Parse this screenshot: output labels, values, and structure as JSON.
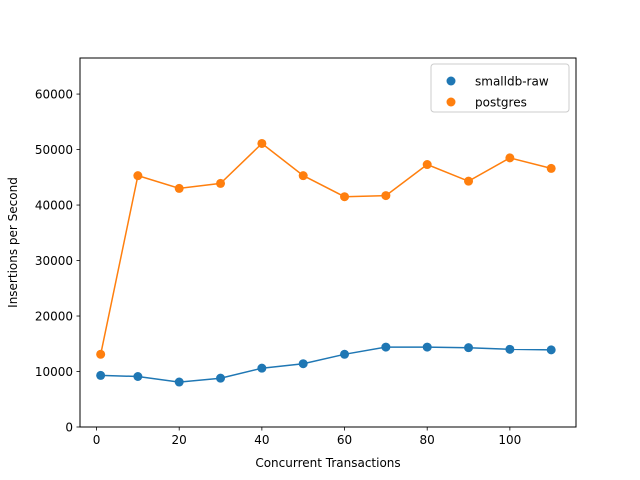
{
  "chart_data": {
    "type": "line",
    "title": "",
    "xlabel": "Concurrent Transactions",
    "ylabel": "Insertions per Second",
    "xlim": [
      -4,
      116
    ],
    "ylim": [
      0,
      66500
    ],
    "xticks": [
      0,
      20,
      40,
      60,
      80,
      100
    ],
    "yticks": [
      0,
      10000,
      20000,
      30000,
      40000,
      50000,
      60000
    ],
    "grid": false,
    "legend_position": "top-right",
    "x": [
      1,
      10,
      20,
      30,
      40,
      50,
      60,
      70,
      80,
      90,
      100,
      110
    ],
    "series": [
      {
        "name": "smalldb-raw",
        "color": "#1f77b4",
        "values": [
          9300,
          9100,
          8100,
          8800,
          10600,
          11400,
          13100,
          14400,
          14400,
          14300,
          14000,
          13900
        ]
      },
      {
        "name": "postgres",
        "color": "#ff7f0e",
        "values": [
          13100,
          45300,
          43000,
          43900,
          51100,
          45300,
          41500,
          41700,
          47300,
          44300,
          48500,
          46600
        ]
      }
    ]
  }
}
